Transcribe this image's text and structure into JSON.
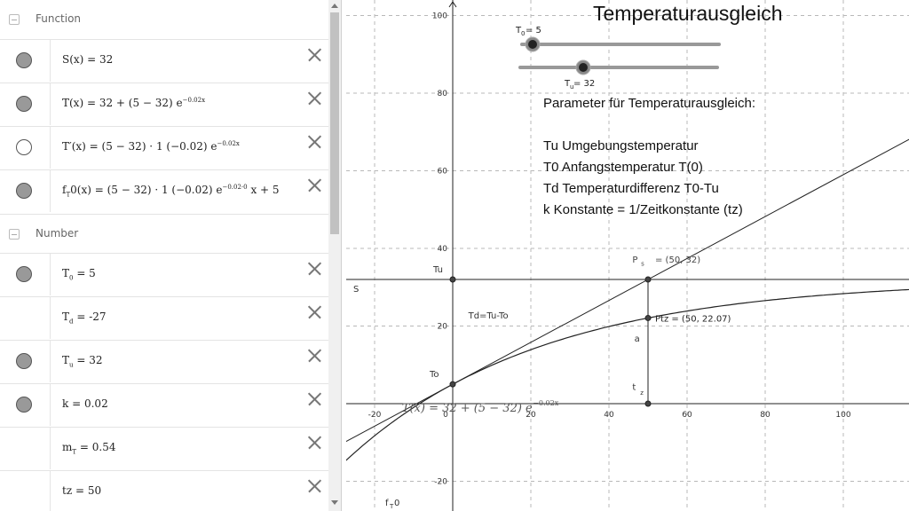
{
  "algebra": {
    "groups": [
      {
        "name": "Function"
      },
      {
        "name": "Number"
      }
    ],
    "function_items": [
      {
        "label": "S(x)  =  32",
        "visible": true
      },
      {
        "label": "T(x)  =  32 + (5 − 32) e",
        "sup": "−0.02x",
        "visible": true
      },
      {
        "label": "T′(x)  =  (5 − 32) · 1 (−0.02) e",
        "sup": "−0.02x",
        "visible": false
      },
      {
        "label": "f",
        "sub": "T",
        "label2": "0(x)  =  (5 − 32) · 1 (−0.02) e",
        "sup": "−0.02·0",
        "tail": " x + 5",
        "visible": true
      }
    ],
    "number_items": [
      {
        "name": "T",
        "sub": "0",
        "value": "=  5",
        "has_toggle": true,
        "visible": true
      },
      {
        "name": "T",
        "sub": "d",
        "value": "=  -27",
        "has_toggle": false,
        "visible": false
      },
      {
        "name": "T",
        "sub": "u",
        "value": "=  32",
        "has_toggle": true,
        "visible": true
      },
      {
        "name": "k",
        "sub": "",
        "value": "=  0.02",
        "has_toggle": true,
        "visible": true
      },
      {
        "name": "m",
        "sub": "T",
        "value": "=  0.54",
        "has_toggle": false,
        "visible": false
      },
      {
        "name": "tz",
        "sub": "",
        "value": "=  50",
        "has_toggle": false,
        "visible": false
      }
    ]
  },
  "graphics": {
    "title": "Temperaturausgleich",
    "slider_T0": {
      "label": "T",
      "sub": "0",
      "text": " = 5",
      "value": 5
    },
    "slider_Tu": {
      "label": "T",
      "sub": "u",
      "text": " = 32",
      "value": 32
    },
    "params": [
      "Parameter für Temperaturausgleich:",
      "Tu Umgebungstemperatur",
      "T0 Anfangstemperatur  T(0)",
      "Td Temperaturdifferenz T0-Tu",
      "k  Konstante = 1/Zeitkonstante (tz)"
    ],
    "x_ticks": [
      -20,
      0,
      20,
      40,
      60,
      80,
      100
    ],
    "y_ticks": [
      -20,
      20,
      40,
      60,
      80,
      100
    ],
    "labels": {
      "Tu": "Tu",
      "S": "S",
      "To": "To",
      "Td": "Td=Tu-To",
      "a": "a",
      "tz": "t",
      "tz_sub": "z",
      "Ps": "P",
      "Ps_sub": "s",
      "Ps_val": " = (50, 32)",
      "Ptz": "Ptz = (50, 22.07)",
      "fT0": "f",
      "fT0_sub": "T",
      "fT0_tail": "0",
      "formula": "T(x)  =  32 + (5 − 32) e",
      "formula_sup": "−0.02x"
    },
    "colors": {
      "grid": "#b8b8b8",
      "axis": "#222222",
      "curve": "#222222",
      "point": "#444444"
    }
  }
}
